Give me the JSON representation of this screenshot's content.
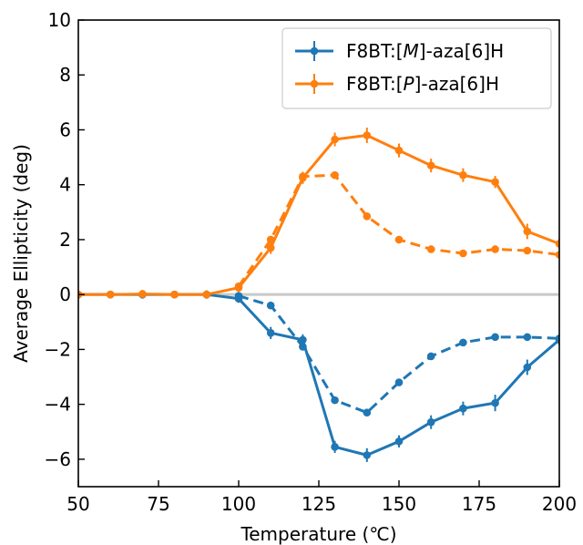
{
  "chart_data": {
    "type": "line",
    "title": "",
    "xlabel": "Temperature (℃)",
    "ylabel": "Average Ellipticity (deg)",
    "xlim": [
      50,
      200
    ],
    "ylim": [
      -7,
      10
    ],
    "xticks": [
      50,
      75,
      100,
      125,
      150,
      175,
      200
    ],
    "yticks": [
      -6,
      -4,
      -2,
      0,
      2,
      4,
      6,
      8,
      10
    ],
    "grid": false,
    "legend_position": "top-right",
    "zero_line": {
      "y": 0,
      "color": "#c8c8c8"
    },
    "series": [
      {
        "name": "F8BT:[M]-aza[6]H",
        "legend": {
          "prefix": "F8BT:[",
          "italic": "M",
          "suffix": "]-aza[6]H"
        },
        "color": "#1f77b4",
        "style": "solid",
        "x": [
          50,
          60,
          70,
          80,
          90,
          100,
          110,
          120,
          130,
          140,
          150,
          160,
          170,
          180,
          190,
          200
        ],
        "y": [
          0,
          0,
          0,
          0,
          0,
          -0.15,
          -1.4,
          -1.65,
          -5.55,
          -5.85,
          -5.35,
          -4.65,
          -4.15,
          -3.95,
          -2.65,
          -1.65
        ],
        "yerr": [
          0.1,
          0.1,
          0.15,
          0.12,
          0.15,
          0.15,
          0.22,
          0.2,
          0.22,
          0.25,
          0.22,
          0.25,
          0.25,
          0.3,
          0.28,
          0.2
        ]
      },
      {
        "name": "F8BT:[P]-aza[6]H",
        "legend": {
          "prefix": "F8BT:[",
          "italic": "P",
          "suffix": "]-aza[6]H"
        },
        "color": "#ff7f0e",
        "style": "solid",
        "x": [
          50,
          60,
          70,
          80,
          90,
          100,
          110,
          120,
          130,
          140,
          150,
          160,
          170,
          180,
          190,
          200
        ],
        "y": [
          0,
          0,
          0.02,
          0,
          0,
          0.25,
          1.7,
          4.25,
          5.65,
          5.8,
          5.25,
          4.7,
          4.35,
          4.1,
          2.3,
          1.85
        ],
        "yerr": [
          0.1,
          0.1,
          0.15,
          0.12,
          0.15,
          0.15,
          0.22,
          0.22,
          0.25,
          0.28,
          0.25,
          0.25,
          0.25,
          0.22,
          0.28,
          0.2
        ]
      },
      {
        "color": "#1f77b4",
        "style": "dashed",
        "x": [
          100,
          110,
          120,
          130,
          140,
          150,
          160,
          170,
          180,
          190,
          200
        ],
        "y": [
          -0.05,
          -0.4,
          -1.9,
          -3.85,
          -4.3,
          -3.2,
          -2.25,
          -1.75,
          -1.55,
          -1.55,
          -1.6
        ]
      },
      {
        "color": "#ff7f0e",
        "style": "dashed",
        "x": [
          100,
          110,
          120,
          130,
          140,
          150,
          160,
          170,
          180,
          190,
          200
        ],
        "y": [
          0.3,
          2.0,
          4.3,
          4.35,
          2.85,
          2.0,
          1.65,
          1.5,
          1.65,
          1.6,
          1.45
        ]
      }
    ]
  }
}
